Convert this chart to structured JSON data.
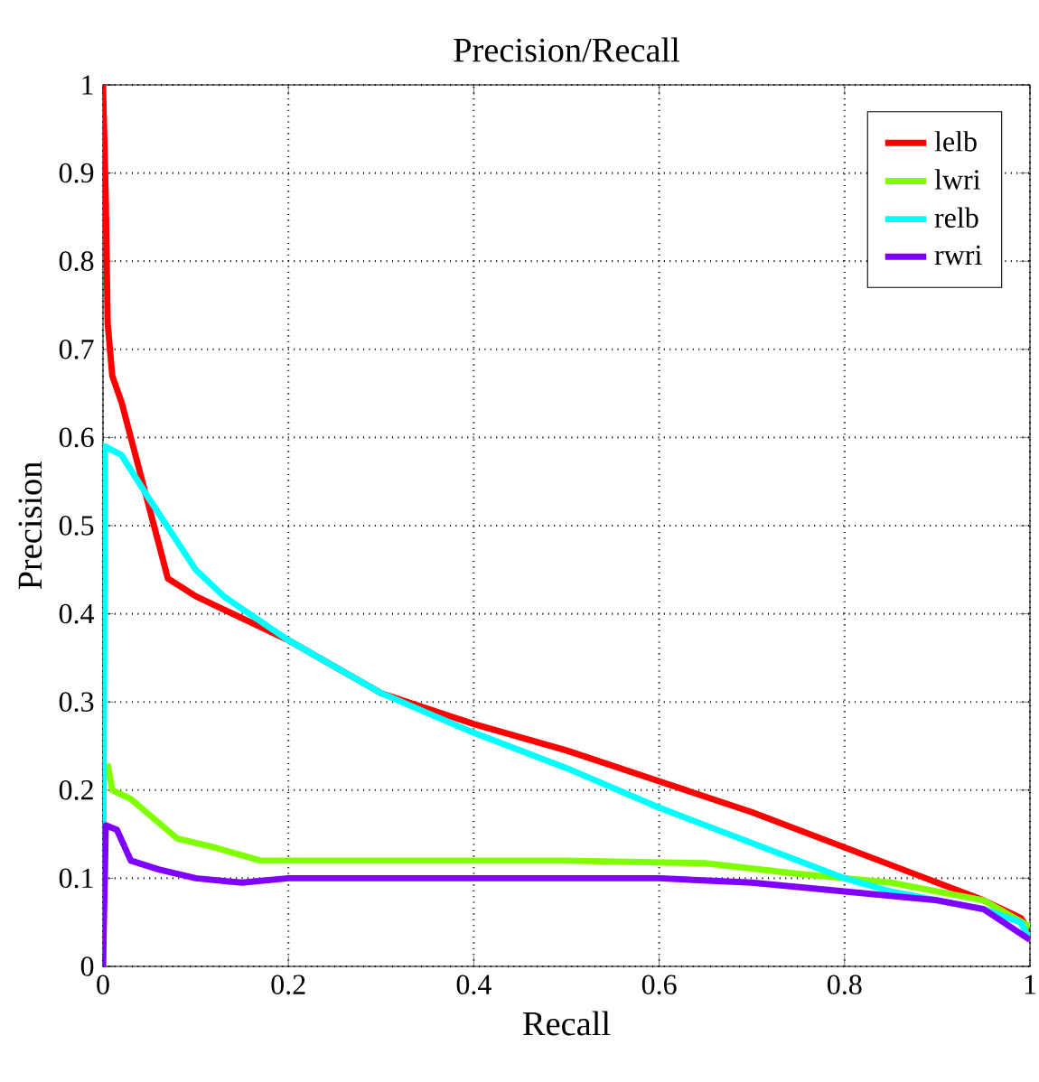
{
  "chart_data": {
    "type": "line",
    "title": "Precision/Recall",
    "xlabel": "Recall",
    "ylabel": "Precision",
    "xlim": [
      0,
      1
    ],
    "ylim": [
      0,
      1
    ],
    "xticks": [
      0,
      {
        "value": 0.2,
        "label": "0.2"
      },
      {
        "value": 0.4,
        "label": "0.4"
      },
      {
        "value": 0.6,
        "label": "0.6"
      },
      {
        "value": 0.8,
        "label": "0.8"
      },
      1
    ],
    "yticks": [
      0,
      {
        "value": 0.1,
        "label": "0.1"
      },
      {
        "value": 0.2,
        "label": "0.2"
      },
      {
        "value": 0.3,
        "label": "0.3"
      },
      {
        "value": 0.4,
        "label": "0.4"
      },
      {
        "value": 0.5,
        "label": "0.5"
      },
      {
        "value": 0.6,
        "label": "0.6"
      },
      {
        "value": 0.7,
        "label": "0.7"
      },
      {
        "value": 0.8,
        "label": "0.8"
      },
      {
        "value": 0.9,
        "label": "0.9"
      },
      1
    ],
    "grid": true,
    "legend": "top right",
    "marker": "none",
    "line_style": "solid",
    "series": [
      {
        "name": "lelb",
        "color": "#ff0000",
        "x": [
          0,
          0.003,
          0.005,
          0.01,
          0.02,
          0.04,
          0.07,
          0.1,
          0.2,
          0.3,
          0.4,
          0.5,
          0.6,
          0.7,
          0.8,
          0.9,
          0.95,
          0.99,
          1.0
        ],
        "values": [
          1.0,
          0.87,
          0.73,
          0.67,
          0.64,
          0.56,
          0.44,
          0.42,
          0.37,
          0.31,
          0.275,
          0.245,
          0.21,
          0.175,
          0.135,
          0.095,
          0.075,
          0.055,
          0.04
        ]
      },
      {
        "name": "lwri",
        "color": "#80ff00",
        "x": [
          0.005,
          0.01,
          0.03,
          0.08,
          0.12,
          0.17,
          0.3,
          0.5,
          0.65,
          0.75,
          0.85,
          0.95,
          1.0
        ],
        "values": [
          0.23,
          0.2,
          0.19,
          0.145,
          0.135,
          0.12,
          0.12,
          0.12,
          0.117,
          0.105,
          0.095,
          0.075,
          0.045
        ]
      },
      {
        "name": "relb",
        "color": "#00ffff",
        "x": [
          0,
          0.002,
          0.02,
          0.05,
          0.1,
          0.13,
          0.2,
          0.3,
          0.4,
          0.5,
          0.6,
          0.7,
          0.8,
          0.85,
          0.9,
          0.95,
          0.99,
          1.0
        ],
        "values": [
          0.0,
          0.59,
          0.58,
          0.53,
          0.45,
          0.42,
          0.37,
          0.31,
          0.265,
          0.225,
          0.18,
          0.14,
          0.1,
          0.085,
          0.075,
          0.065,
          0.05,
          0.03
        ]
      },
      {
        "name": "rwri",
        "color": "#8000ff",
        "x": [
          0,
          0.003,
          0.015,
          0.03,
          0.06,
          0.1,
          0.15,
          0.2,
          0.3,
          0.5,
          0.6,
          0.7,
          0.8,
          0.9,
          0.95,
          1.0
        ],
        "values": [
          0.0,
          0.16,
          0.155,
          0.12,
          0.11,
          0.1,
          0.095,
          0.1,
          0.1,
          0.1,
          0.1,
          0.095,
          0.085,
          0.075,
          0.065,
          0.03
        ]
      }
    ]
  }
}
